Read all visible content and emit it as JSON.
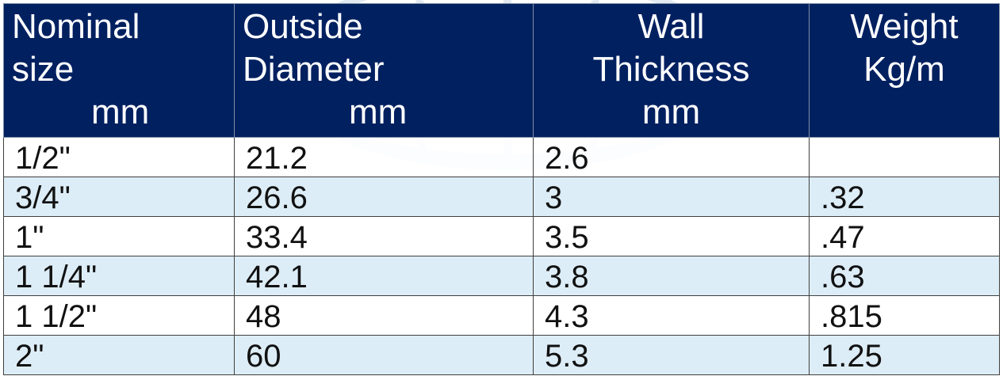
{
  "table": {
    "headers": [
      [
        "Nominal",
        "size",
        "mm"
      ],
      [
        "Outside",
        "Diameter",
        "mm"
      ],
      [
        "Wall",
        "Thickness",
        "mm"
      ],
      [
        "Weight",
        "Kg/m"
      ]
    ],
    "rows": [
      [
        "1/2\"",
        "21.2",
        "2.6",
        ""
      ],
      [
        "3/4\"",
        "26.6",
        "3",
        ".32"
      ],
      [
        "1\"",
        "33.4",
        "3.5",
        ".47"
      ],
      [
        "1 1/4\"",
        "42.1",
        "3.8",
        ".63"
      ],
      [
        "1 1/2\"",
        "48",
        "4.3",
        ".815"
      ],
      [
        "2\"",
        "60",
        "5.3",
        "1.25"
      ]
    ]
  },
  "colors": {
    "header_bg": "#002060",
    "header_text": "#ffffff",
    "row_alt_bg": "#daecf6",
    "row_bg": "#ffffff",
    "watermark": "#c7d8e6"
  },
  "icons": {
    "watermark": "globe-watermark-icon"
  }
}
